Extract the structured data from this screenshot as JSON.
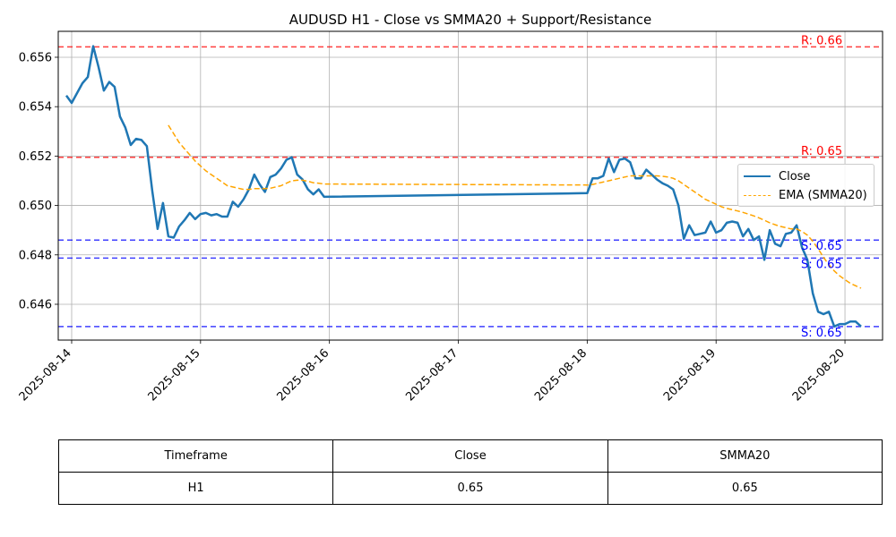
{
  "chart_data": {
    "type": "line",
    "title": "AUDUSD H1 - Close vs SMMA20 + Support/Resistance",
    "xlabel": "",
    "ylabel": "",
    "x_ticks": [
      "2025-08-14",
      "2025-08-15",
      "2025-08-16",
      "2025-08-17",
      "2025-08-18",
      "2025-08-19",
      "2025-08-20"
    ],
    "y_ticks": [
      "0.646",
      "0.648",
      "0.650",
      "0.652",
      "0.654",
      "0.656"
    ],
    "xlim": [
      "2025-08-13T21:30",
      "2025-08-20T07:00"
    ],
    "ylim": [
      0.64455,
      0.65705
    ],
    "grid": true,
    "legend_position": "center-right",
    "series": [
      {
        "name": "Close",
        "color": "#1f77b4",
        "style": "solid",
        "points": [
          [
            "2025-08-13T23:00",
            0.65445
          ],
          [
            "2025-08-14T00:00",
            0.65415
          ],
          [
            "2025-08-14T01:00",
            0.65455
          ],
          [
            "2025-08-14T02:00",
            0.65495
          ],
          [
            "2025-08-14T03:00",
            0.6552
          ],
          [
            "2025-08-14T04:00",
            0.65645
          ],
          [
            "2025-08-14T05:00",
            0.6556
          ],
          [
            "2025-08-14T06:00",
            0.65465
          ],
          [
            "2025-08-14T07:00",
            0.655
          ],
          [
            "2025-08-14T08:00",
            0.6548
          ],
          [
            "2025-08-14T09:00",
            0.6536
          ],
          [
            "2025-08-14T10:00",
            0.65315
          ],
          [
            "2025-08-14T11:00",
            0.65245
          ],
          [
            "2025-08-14T12:00",
            0.6527
          ],
          [
            "2025-08-14T13:00",
            0.65265
          ],
          [
            "2025-08-14T14:00",
            0.6524
          ],
          [
            "2025-08-14T15:00",
            0.6506
          ],
          [
            "2025-08-14T16:00",
            0.64905
          ],
          [
            "2025-08-14T17:00",
            0.6501
          ],
          [
            "2025-08-14T18:00",
            0.64875
          ],
          [
            "2025-08-14T19:00",
            0.6487
          ],
          [
            "2025-08-14T20:00",
            0.64915
          ],
          [
            "2025-08-14T21:00",
            0.6494
          ],
          [
            "2025-08-14T22:00",
            0.6497
          ],
          [
            "2025-08-14T23:00",
            0.64945
          ],
          [
            "2025-08-15T00:00",
            0.64965
          ],
          [
            "2025-08-15T01:00",
            0.6497
          ],
          [
            "2025-08-15T02:00",
            0.6496
          ],
          [
            "2025-08-15T03:00",
            0.64965
          ],
          [
            "2025-08-15T04:00",
            0.64955
          ],
          [
            "2025-08-15T05:00",
            0.64955
          ],
          [
            "2025-08-15T06:00",
            0.65015
          ],
          [
            "2025-08-15T07:00",
            0.64995
          ],
          [
            "2025-08-15T08:00",
            0.65025
          ],
          [
            "2025-08-15T09:00",
            0.65065
          ],
          [
            "2025-08-15T10:00",
            0.65125
          ],
          [
            "2025-08-15T11:00",
            0.65085
          ],
          [
            "2025-08-15T12:00",
            0.65055
          ],
          [
            "2025-08-15T13:00",
            0.65115
          ],
          [
            "2025-08-15T14:00",
            0.65125
          ],
          [
            "2025-08-15T15:00",
            0.6515
          ],
          [
            "2025-08-15T16:00",
            0.65185
          ],
          [
            "2025-08-15T17:00",
            0.65195
          ],
          [
            "2025-08-15T18:00",
            0.65125
          ],
          [
            "2025-08-15T19:00",
            0.65105
          ],
          [
            "2025-08-15T20:00",
            0.65065
          ],
          [
            "2025-08-15T21:00",
            0.65045
          ],
          [
            "2025-08-15T22:00",
            0.65065
          ],
          [
            "2025-08-15T23:00",
            0.65035
          ],
          [
            "2025-08-18T00:00",
            0.6505
          ],
          [
            "2025-08-18T01:00",
            0.6511
          ],
          [
            "2025-08-18T02:00",
            0.6511
          ],
          [
            "2025-08-18T03:00",
            0.6512
          ],
          [
            "2025-08-18T04:00",
            0.6519
          ],
          [
            "2025-08-18T05:00",
            0.65135
          ],
          [
            "2025-08-18T06:00",
            0.65185
          ],
          [
            "2025-08-18T07:00",
            0.6519
          ],
          [
            "2025-08-18T08:00",
            0.65175
          ],
          [
            "2025-08-18T09:00",
            0.6511
          ],
          [
            "2025-08-18T10:00",
            0.6511
          ],
          [
            "2025-08-18T11:00",
            0.65145
          ],
          [
            "2025-08-18T12:00",
            0.65125
          ],
          [
            "2025-08-18T13:00",
            0.65105
          ],
          [
            "2025-08-18T14:00",
            0.6509
          ],
          [
            "2025-08-18T15:00",
            0.6508
          ],
          [
            "2025-08-18T16:00",
            0.65065
          ],
          [
            "2025-08-18T17:00",
            0.65
          ],
          [
            "2025-08-18T18:00",
            0.64865
          ],
          [
            "2025-08-18T19:00",
            0.6492
          ],
          [
            "2025-08-18T20:00",
            0.6488
          ],
          [
            "2025-08-18T21:00",
            0.64885
          ],
          [
            "2025-08-18T22:00",
            0.6489
          ],
          [
            "2025-08-18T23:00",
            0.64935
          ],
          [
            "2025-08-19T00:00",
            0.6489
          ],
          [
            "2025-08-19T01:00",
            0.649
          ],
          [
            "2025-08-19T02:00",
            0.6493
          ],
          [
            "2025-08-19T03:00",
            0.64935
          ],
          [
            "2025-08-19T04:00",
            0.6493
          ],
          [
            "2025-08-19T05:00",
            0.64875
          ],
          [
            "2025-08-19T06:00",
            0.64905
          ],
          [
            "2025-08-19T07:00",
            0.6486
          ],
          [
            "2025-08-19T08:00",
            0.64875
          ],
          [
            "2025-08-19T09:00",
            0.6478
          ],
          [
            "2025-08-19T10:00",
            0.649
          ],
          [
            "2025-08-19T11:00",
            0.64845
          ],
          [
            "2025-08-19T12:00",
            0.64835
          ],
          [
            "2025-08-19T13:00",
            0.64885
          ],
          [
            "2025-08-19T14:00",
            0.6489
          ],
          [
            "2025-08-19T15:00",
            0.6492
          ],
          [
            "2025-08-19T16:00",
            0.6483
          ],
          [
            "2025-08-19T17:00",
            0.6478
          ],
          [
            "2025-08-19T18:00",
            0.64645
          ],
          [
            "2025-08-19T19:00",
            0.6457
          ],
          [
            "2025-08-19T20:00",
            0.6456
          ],
          [
            "2025-08-19T21:00",
            0.6457
          ],
          [
            "2025-08-19T22:00",
            0.6451
          ],
          [
            "2025-08-19T23:00",
            0.6452
          ],
          [
            "2025-08-20T00:00",
            0.6452
          ],
          [
            "2025-08-20T01:00",
            0.6453
          ],
          [
            "2025-08-20T02:00",
            0.6453
          ],
          [
            "2025-08-20T03:00",
            0.6451
          ]
        ]
      },
      {
        "name": "EMA (SMMA20)",
        "color": "#ffa500",
        "style": "dashed",
        "points": [
          [
            "2025-08-14T18:00",
            0.65325
          ],
          [
            "2025-08-14T19:00",
            0.6529
          ],
          [
            "2025-08-14T20:00",
            0.65255
          ],
          [
            "2025-08-14T21:00",
            0.6523
          ],
          [
            "2025-08-14T22:00",
            0.65205
          ],
          [
            "2025-08-14T23:00",
            0.6518
          ],
          [
            "2025-08-15T00:00",
            0.6516
          ],
          [
            "2025-08-15T01:00",
            0.6514
          ],
          [
            "2025-08-15T02:00",
            0.65125
          ],
          [
            "2025-08-15T03:00",
            0.6511
          ],
          [
            "2025-08-15T04:00",
            0.65095
          ],
          [
            "2025-08-15T05:00",
            0.6508
          ],
          [
            "2025-08-15T06:00",
            0.65075
          ],
          [
            "2025-08-15T07:00",
            0.6507
          ],
          [
            "2025-08-15T08:00",
            0.65065
          ],
          [
            "2025-08-15T09:00",
            0.65065
          ],
          [
            "2025-08-15T10:00",
            0.65068
          ],
          [
            "2025-08-15T11:00",
            0.65068
          ],
          [
            "2025-08-15T12:00",
            0.65068
          ],
          [
            "2025-08-15T13:00",
            0.6507
          ],
          [
            "2025-08-15T14:00",
            0.65075
          ],
          [
            "2025-08-15T15:00",
            0.6508
          ],
          [
            "2025-08-15T16:00",
            0.6509
          ],
          [
            "2025-08-15T17:00",
            0.651
          ],
          [
            "2025-08-15T18:00",
            0.65102
          ],
          [
            "2025-08-15T19:00",
            0.65102
          ],
          [
            "2025-08-15T20:00",
            0.65098
          ],
          [
            "2025-08-15T21:00",
            0.65092
          ],
          [
            "2025-08-15T22:00",
            0.6509
          ],
          [
            "2025-08-15T23:00",
            0.65087
          ],
          [
            "2025-08-18T00:00",
            0.65083
          ],
          [
            "2025-08-18T01:00",
            0.65085
          ],
          [
            "2025-08-18T02:00",
            0.6509
          ],
          [
            "2025-08-18T03:00",
            0.65095
          ],
          [
            "2025-08-18T04:00",
            0.651
          ],
          [
            "2025-08-18T05:00",
            0.65105
          ],
          [
            "2025-08-18T06:00",
            0.6511
          ],
          [
            "2025-08-18T07:00",
            0.65115
          ],
          [
            "2025-08-18T08:00",
            0.6512
          ],
          [
            "2025-08-18T09:00",
            0.6512
          ],
          [
            "2025-08-18T10:00",
            0.6512
          ],
          [
            "2025-08-18T11:00",
            0.6512
          ],
          [
            "2025-08-18T12:00",
            0.6512
          ],
          [
            "2025-08-18T13:00",
            0.6512
          ],
          [
            "2025-08-18T14:00",
            0.65118
          ],
          [
            "2025-08-18T15:00",
            0.65115
          ],
          [
            "2025-08-18T16:00",
            0.6511
          ],
          [
            "2025-08-18T17:00",
            0.651
          ],
          [
            "2025-08-18T18:00",
            0.65085
          ],
          [
            "2025-08-18T19:00",
            0.6507
          ],
          [
            "2025-08-18T20:00",
            0.65055
          ],
          [
            "2025-08-18T21:00",
            0.6504
          ],
          [
            "2025-08-18T22:00",
            0.65025
          ],
          [
            "2025-08-18T23:00",
            0.65015
          ],
          [
            "2025-08-19T00:00",
            0.65005
          ],
          [
            "2025-08-19T01:00",
            0.64995
          ],
          [
            "2025-08-19T02:00",
            0.64988
          ],
          [
            "2025-08-19T03:00",
            0.64983
          ],
          [
            "2025-08-19T04:00",
            0.64978
          ],
          [
            "2025-08-19T05:00",
            0.64972
          ],
          [
            "2025-08-19T06:00",
            0.64965
          ],
          [
            "2025-08-19T07:00",
            0.64958
          ],
          [
            "2025-08-19T08:00",
            0.6495
          ],
          [
            "2025-08-19T09:00",
            0.6494
          ],
          [
            "2025-08-19T10:00",
            0.6493
          ],
          [
            "2025-08-19T11:00",
            0.64922
          ],
          [
            "2025-08-19T12:00",
            0.64915
          ],
          [
            "2025-08-19T13:00",
            0.6491
          ],
          [
            "2025-08-19T14:00",
            0.64905
          ],
          [
            "2025-08-19T15:00",
            0.64905
          ],
          [
            "2025-08-19T16:00",
            0.64895
          ],
          [
            "2025-08-19T17:00",
            0.6488
          ],
          [
            "2025-08-19T18:00",
            0.64855
          ],
          [
            "2025-08-19T19:00",
            0.64825
          ],
          [
            "2025-08-19T20:00",
            0.6479
          ],
          [
            "2025-08-19T21:00",
            0.6476
          ],
          [
            "2025-08-19T22:00",
            0.64735
          ],
          [
            "2025-08-19T23:00",
            0.64715
          ],
          [
            "2025-08-20T00:00",
            0.647
          ],
          [
            "2025-08-20T01:00",
            0.64685
          ],
          [
            "2025-08-20T02:00",
            0.64675
          ],
          [
            "2025-08-20T03:00",
            0.64665
          ]
        ]
      }
    ],
    "levels": [
      {
        "kind": "resistance",
        "value": 0.65642,
        "label": "R: 0.66",
        "color": "#ff0000"
      },
      {
        "kind": "resistance",
        "value": 0.65195,
        "label": "R: 0.65",
        "color": "#ff0000"
      },
      {
        "kind": "support",
        "value": 0.6486,
        "label": "S: 0.65",
        "color": "#0000ff"
      },
      {
        "kind": "support",
        "value": 0.64787,
        "label": "S: 0.65",
        "color": "#0000ff"
      },
      {
        "kind": "support",
        "value": 0.6451,
        "label": "S: 0.65",
        "color": "#0000ff"
      }
    ]
  },
  "table": {
    "headers": [
      "Timeframe",
      "Close",
      "SMMA20"
    ],
    "row": [
      "H1",
      "0.65",
      "0.65"
    ]
  }
}
